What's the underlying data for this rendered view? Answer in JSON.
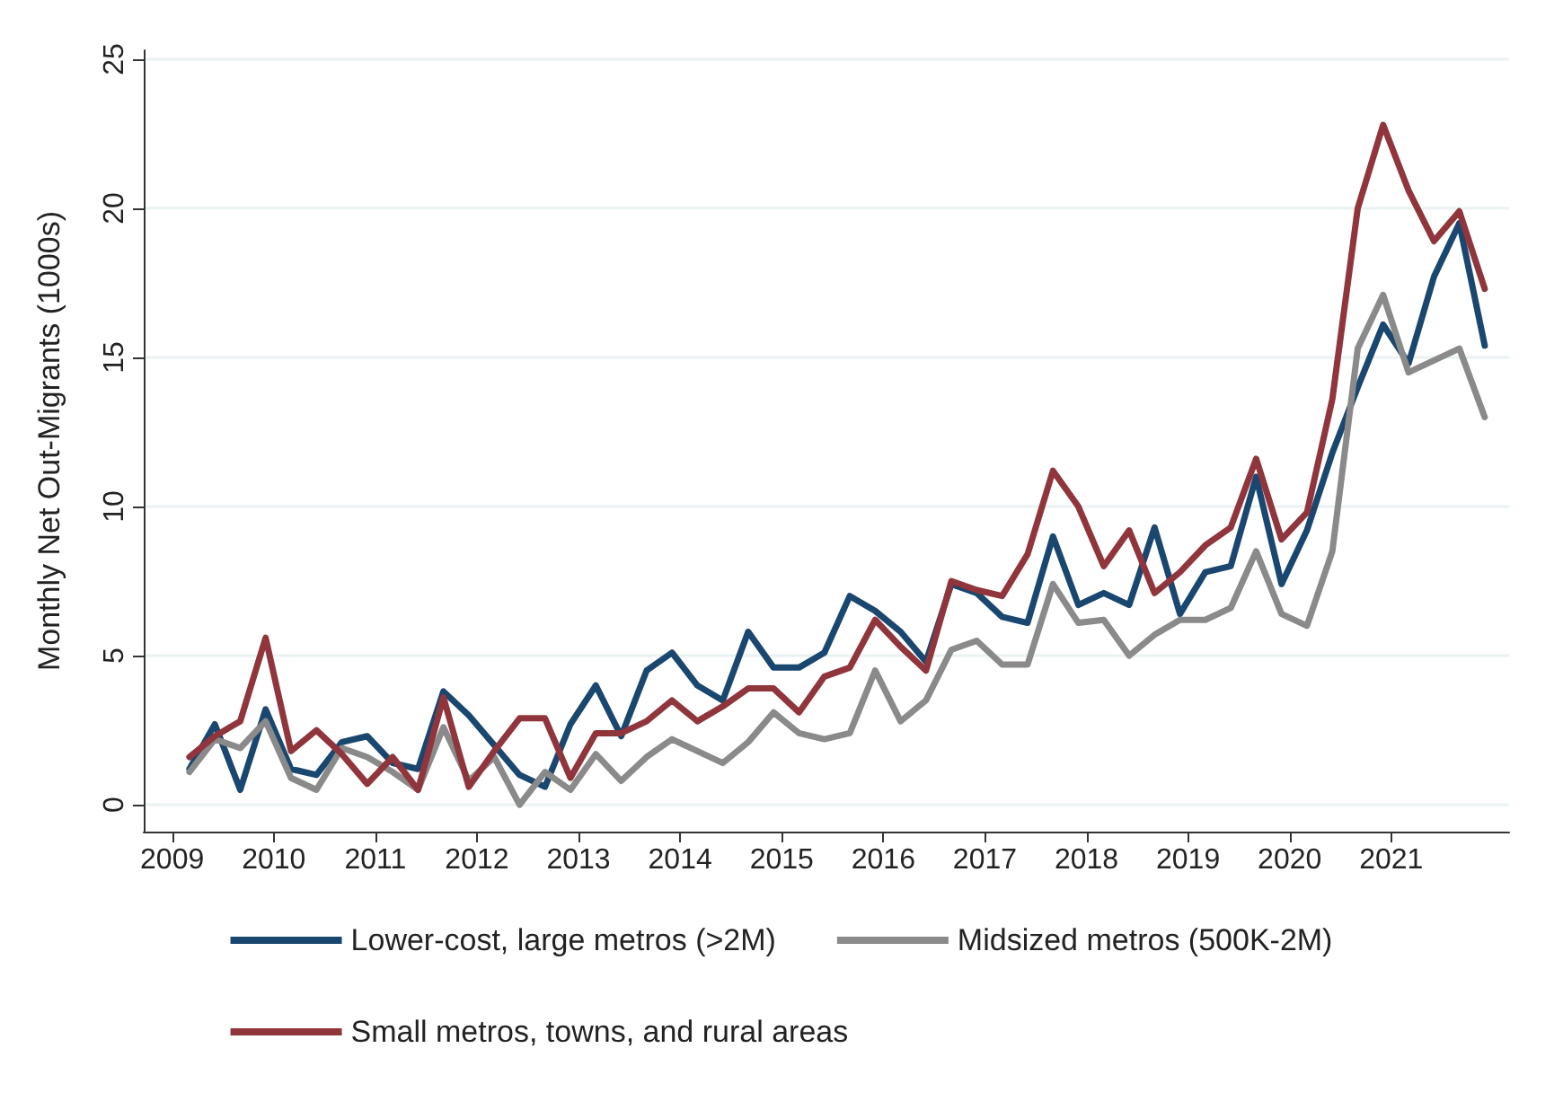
{
  "chart_data": {
    "type": "line",
    "ylabel": "Monthly Net Out-Migrants (1000s)",
    "x": [
      2009.17,
      2009.42,
      2009.67,
      2009.92,
      2010.17,
      2010.42,
      2010.67,
      2010.92,
      2011.17,
      2011.42,
      2011.67,
      2011.92,
      2012.17,
      2012.42,
      2012.67,
      2012.92,
      2013.17,
      2013.42,
      2013.67,
      2013.92,
      2014.17,
      2014.42,
      2014.67,
      2014.92,
      2015.17,
      2015.42,
      2015.67,
      2015.92,
      2016.17,
      2016.42,
      2016.67,
      2016.92,
      2017.17,
      2017.42,
      2017.67,
      2017.92,
      2018.17,
      2018.42,
      2018.67,
      2018.92,
      2019.17,
      2019.42,
      2019.67,
      2019.92,
      2020.17,
      2020.42,
      2020.67,
      2020.92,
      2021.17,
      2021.42,
      2021.67,
      2021.92
    ],
    "series": [
      {
        "name": "Lower-cost, large metros (>2M)",
        "color": "#1a476f",
        "values": [
          1.2,
          2.7,
          0.5,
          3.2,
          1.2,
          1.0,
          2.1,
          2.3,
          1.4,
          1.2,
          3.8,
          3.0,
          2.0,
          1.0,
          0.6,
          2.7,
          4.0,
          2.3,
          4.5,
          5.1,
          4.0,
          3.5,
          5.8,
          4.6,
          4.6,
          5.1,
          7.0,
          6.5,
          5.8,
          4.8,
          7.4,
          7.1,
          6.3,
          6.1,
          9.0,
          6.7,
          7.1,
          6.7,
          9.3,
          6.4,
          7.8,
          8.0,
          11.0,
          7.4,
          9.2,
          11.8,
          14.0,
          16.1,
          14.8,
          17.7,
          19.5,
          15.4
        ]
      },
      {
        "name": "Midsized metros (500K-2M)",
        "color": "#8a8a8a",
        "values": [
          1.1,
          2.2,
          1.9,
          2.8,
          0.9,
          0.5,
          1.9,
          1.6,
          1.1,
          0.5,
          2.6,
          0.8,
          1.6,
          0.0,
          1.1,
          0.5,
          1.7,
          0.8,
          1.6,
          2.2,
          1.8,
          1.4,
          2.1,
          3.1,
          2.4,
          2.2,
          2.4,
          4.5,
          2.8,
          3.5,
          5.2,
          5.5,
          4.7,
          4.7,
          7.4,
          6.1,
          6.2,
          5.0,
          5.7,
          6.2,
          6.2,
          6.6,
          8.5,
          6.4,
          6.0,
          8.5,
          15.3,
          17.1,
          14.5,
          14.9,
          15.3,
          13.0
        ]
      },
      {
        "name": "Small metros, towns, and rural areas",
        "color": "#90353b",
        "values": [
          1.6,
          2.3,
          2.8,
          5.6,
          1.8,
          2.5,
          1.7,
          0.7,
          1.6,
          0.5,
          3.6,
          0.6,
          1.8,
          2.9,
          2.9,
          0.9,
          2.4,
          2.4,
          2.8,
          3.5,
          2.8,
          3.3,
          3.9,
          3.9,
          3.1,
          4.3,
          4.6,
          6.2,
          5.3,
          4.5,
          7.5,
          7.2,
          7.0,
          8.4,
          11.2,
          10.0,
          8.0,
          9.2,
          7.1,
          7.8,
          8.7,
          9.3,
          11.6,
          8.9,
          9.8,
          13.6,
          20.0,
          22.8,
          20.6,
          18.9,
          19.9,
          17.3
        ]
      }
    ],
    "xlim": [
      2008.72,
      2022.16
    ],
    "xticks": [
      2009,
      2010,
      2011,
      2012,
      2013,
      2014,
      2015,
      2016,
      2017,
      2018,
      2019,
      2020,
      2021
    ],
    "ylim": [
      -0.9,
      25.3
    ],
    "yticks": [
      0,
      5,
      10,
      15,
      20,
      25
    ],
    "grid": "y",
    "legend": "bottom",
    "line_style": "solid",
    "marker": "none"
  }
}
